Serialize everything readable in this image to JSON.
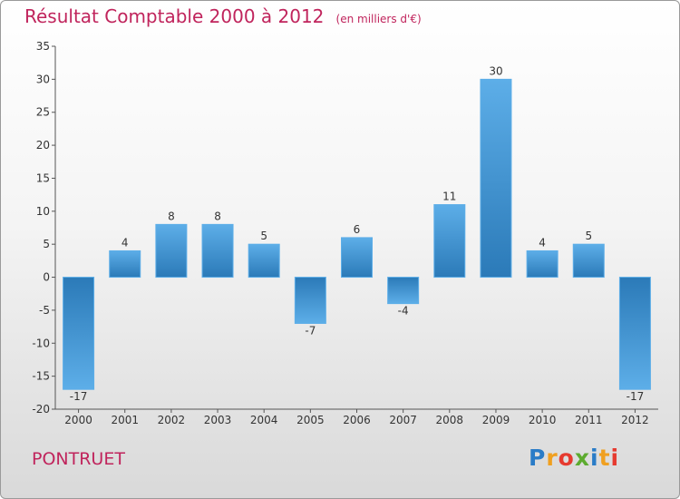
{
  "header": {
    "title": "Résultat Comptable 2000 à 2012",
    "unit": "(en milliers d'€)"
  },
  "footer": {
    "place": "PONTRUET",
    "logo": "Proxiti"
  },
  "colors": {
    "title": "#c0245c",
    "bar_light": "#5daee8",
    "bar_dark": "#2b7ab8",
    "logo_letters": [
      "#2a7cc7",
      "#f0a020",
      "#e63a2f",
      "#5dab2f",
      "#2a7cc7",
      "#f0a020",
      "#e63a2f"
    ]
  },
  "chart_data": {
    "type": "bar",
    "title": "Résultat Comptable 2000 à 2012",
    "subtitle": "(en milliers d'€)",
    "xlabel": "",
    "ylabel": "",
    "categories": [
      "2000",
      "2001",
      "2002",
      "2003",
      "2004",
      "2005",
      "2006",
      "2007",
      "2008",
      "2009",
      "2010",
      "2011",
      "2012"
    ],
    "values": [
      -17,
      4,
      8,
      8,
      5,
      -7,
      6,
      -4,
      11,
      30,
      4,
      5,
      -17
    ],
    "value_labels": [
      "-17",
      "4",
      "8",
      "8",
      "5",
      "-7",
      "6",
      "-4",
      "11",
      "30",
      "4",
      "5",
      "-17"
    ],
    "ylim": [
      -20,
      35
    ],
    "yticks": [
      35,
      30,
      25,
      20,
      15,
      10,
      5,
      0,
      -5,
      -10,
      -15,
      -20
    ],
    "grid": false,
    "legend": "none"
  }
}
